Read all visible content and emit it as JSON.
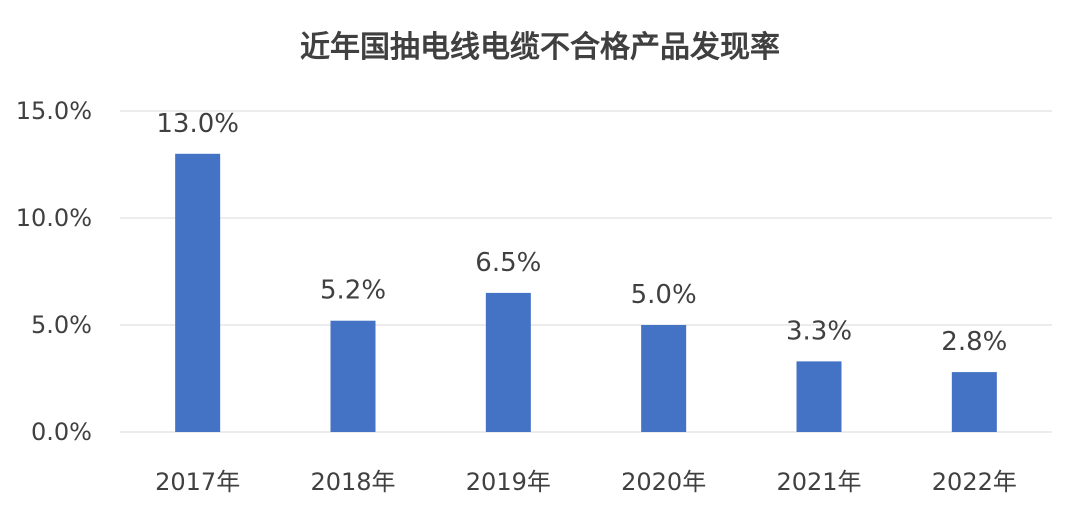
{
  "chart_data": {
    "type": "bar",
    "title": "近年国抽电线电缆不合格产品发现率",
    "categories": [
      "2017年",
      "2018年",
      "2019年",
      "2020年",
      "2021年",
      "2022年"
    ],
    "values": [
      13.0,
      5.2,
      6.5,
      5.0,
      3.3,
      2.8
    ],
    "data_labels": [
      "13.0%",
      "5.2%",
      "6.5%",
      "5.0%",
      "3.3%",
      "2.8%"
    ],
    "y_ticks": [
      0,
      5,
      10,
      15
    ],
    "y_tick_labels": [
      "0.0%",
      "5.0%",
      "10.0%",
      "15.0%"
    ],
    "ylim": [
      0,
      15
    ],
    "grid": true,
    "legend": "none",
    "bar_color": "#4472C4",
    "grid_color": "#D9D9D9"
  }
}
